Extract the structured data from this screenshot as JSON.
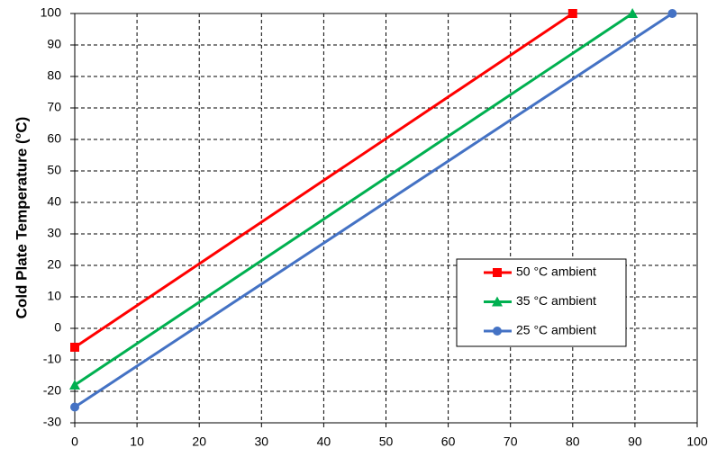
{
  "chart_data": {
    "type": "line",
    "ylabel": "Cold Plate Temperature (°C)",
    "xlim": [
      0,
      100
    ],
    "xticks": [
      0,
      10,
      20,
      30,
      40,
      50,
      60,
      70,
      80,
      90,
      100
    ],
    "ylim": [
      -30,
      100
    ],
    "yticks": [
      -30,
      -20,
      -10,
      0,
      10,
      20,
      30,
      40,
      50,
      60,
      70,
      80,
      90,
      100
    ],
    "grid": true,
    "legend": "center right",
    "series": [
      {
        "name": "50 °C ambient",
        "color": "#ff0000",
        "marker": "square",
        "x": [
          0,
          80
        ],
        "values": [
          -6,
          100
        ]
      },
      {
        "name": "35 °C ambient",
        "color": "#00b050",
        "marker": "triangle",
        "x": [
          0,
          89.6
        ],
        "values": [
          -18,
          100
        ]
      },
      {
        "name": "25 °C ambient",
        "color": "#4472c4",
        "marker": "circle",
        "x": [
          0,
          96
        ],
        "values": [
          -25,
          100
        ]
      }
    ]
  }
}
